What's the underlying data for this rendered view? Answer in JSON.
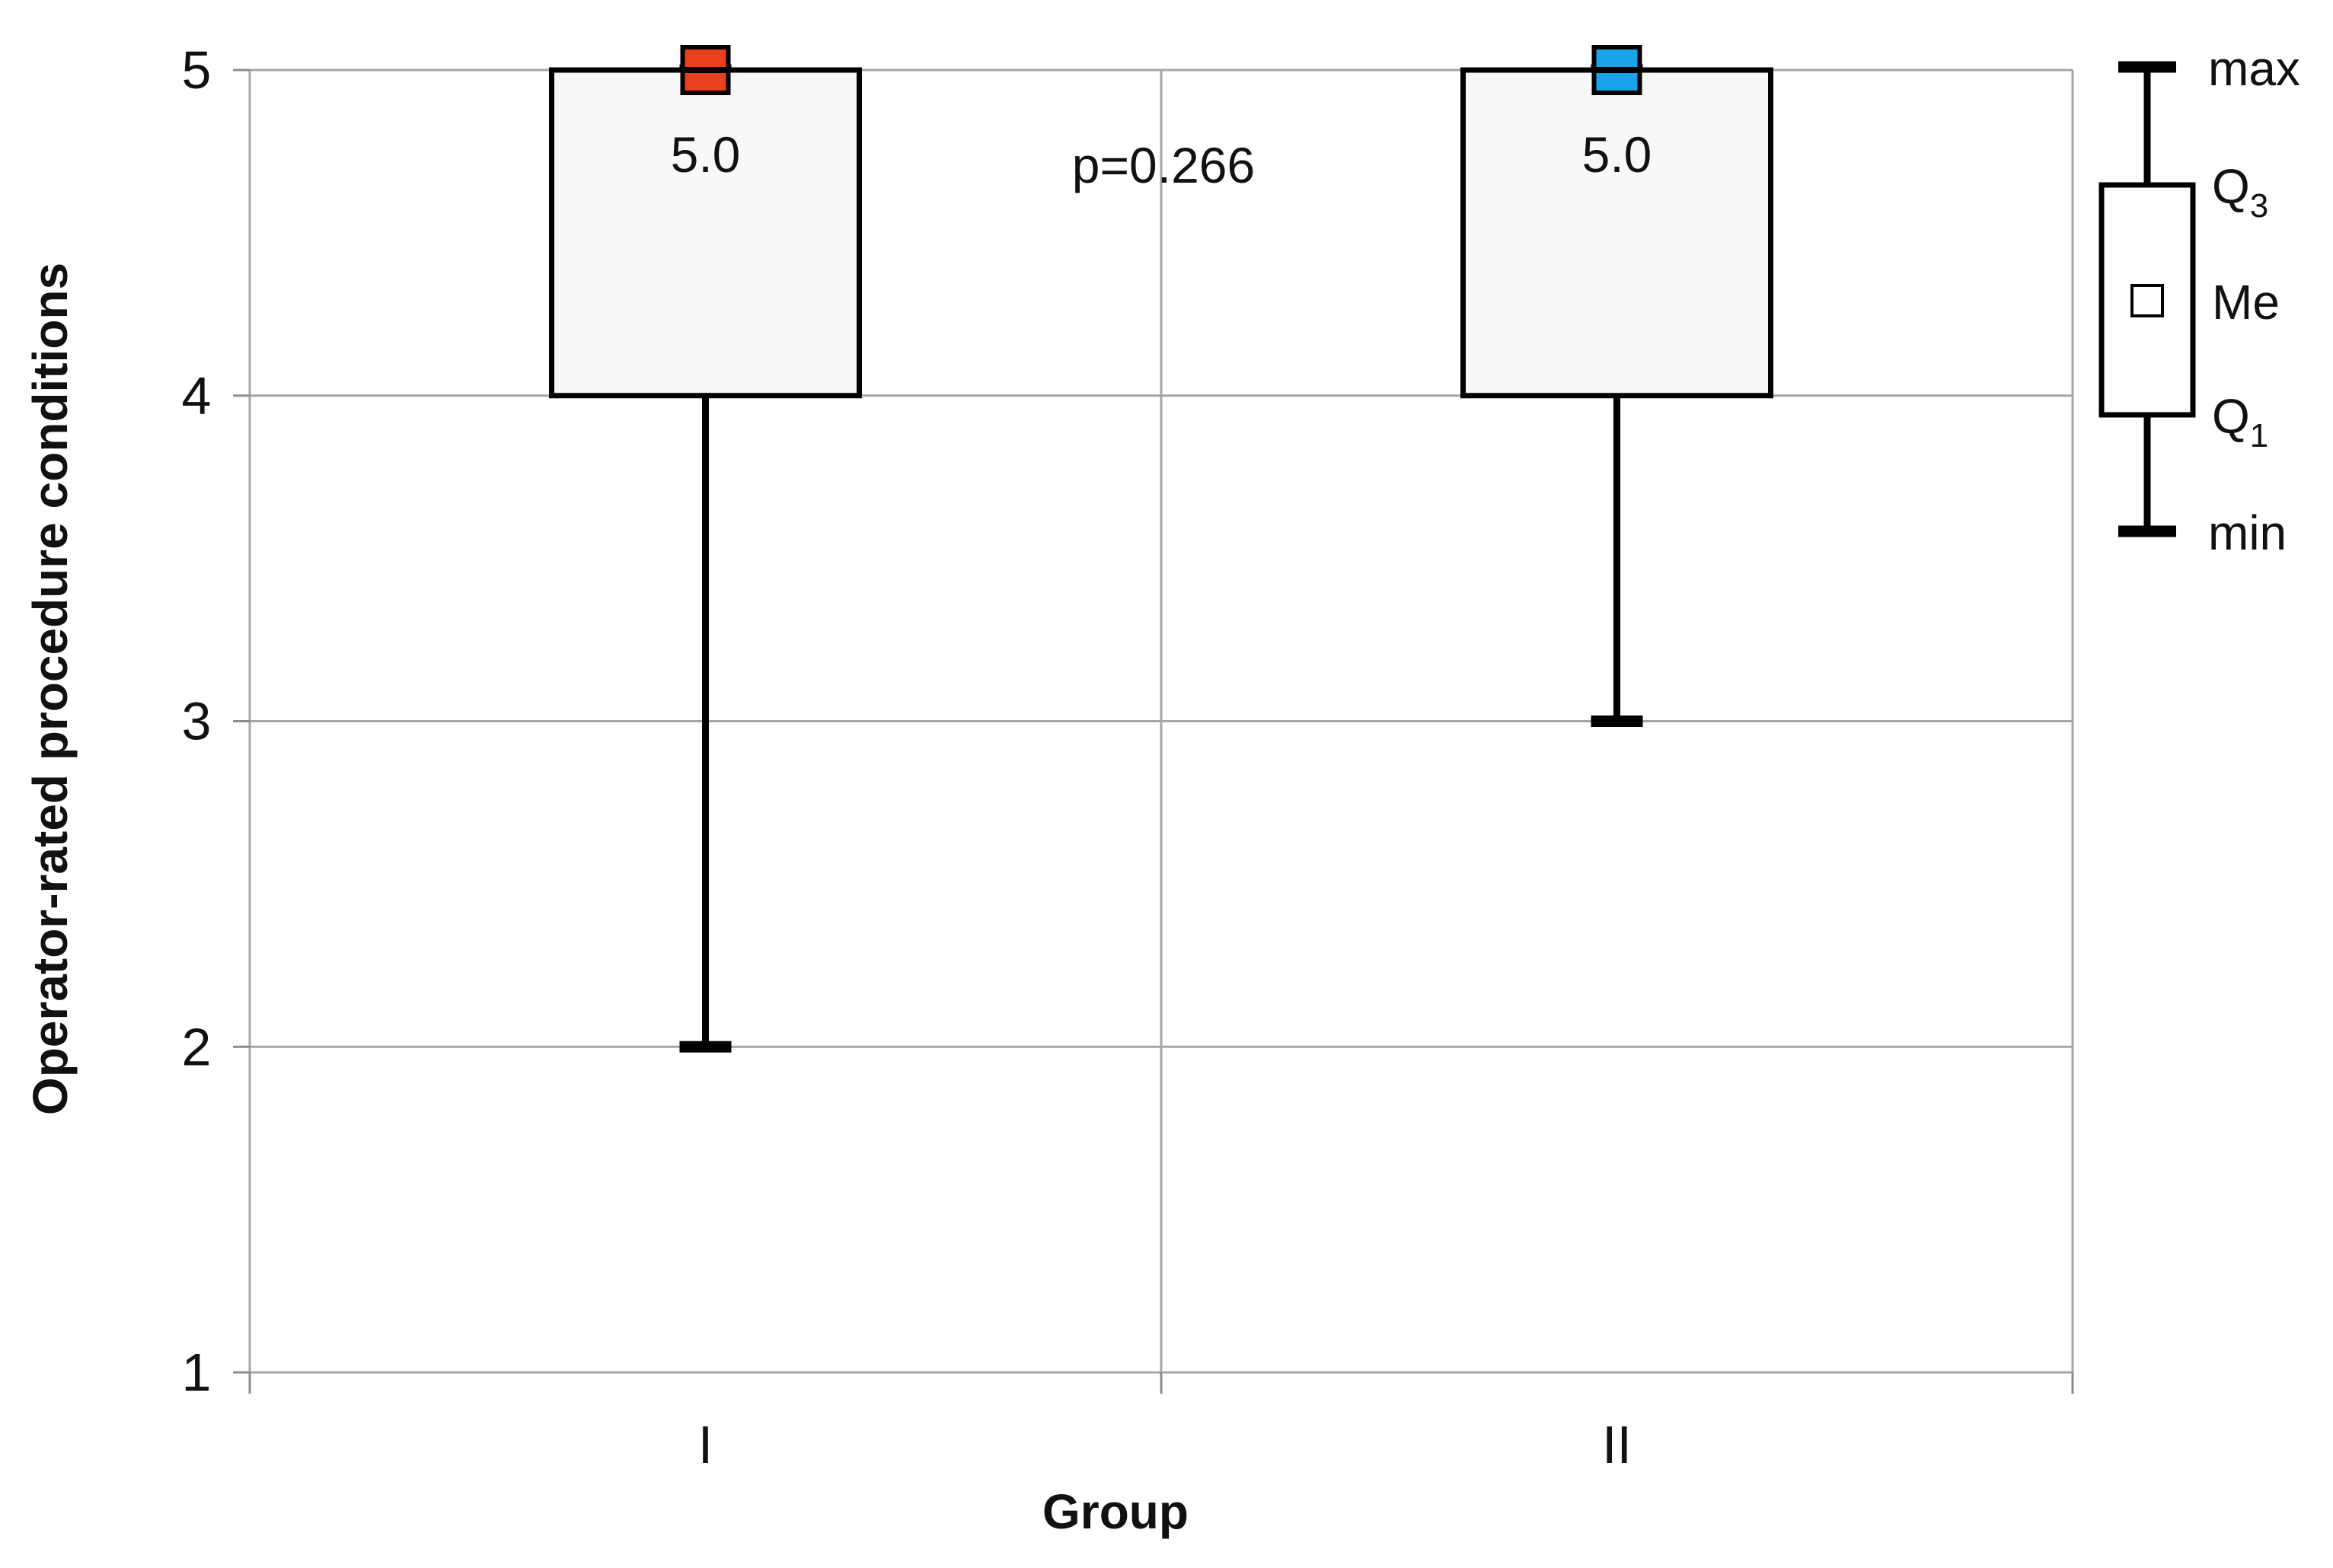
{
  "chart_data": {
    "type": "box",
    "xlabel": "Group",
    "ylabel": "Operator-rated procedure conditions",
    "ylim": [
      1,
      5
    ],
    "yticks": [
      1,
      2,
      3,
      4,
      5
    ],
    "grid": true,
    "categories": [
      "I",
      "II"
    ],
    "groups": [
      {
        "category": "I",
        "min": 2,
        "q1": 4,
        "median": 5,
        "q3": 5,
        "max": 5,
        "median_label": "5.0",
        "color": "#e8401c"
      },
      {
        "category": "II",
        "min": 3,
        "q1": 4,
        "median": 5,
        "q3": 5,
        "max": 5,
        "median_label": "5.0",
        "color": "#1aa3e8"
      }
    ],
    "annotation": "p=0.266",
    "legend": {
      "placement": "right",
      "items": [
        {
          "key": "max",
          "label": "max"
        },
        {
          "key": "q3",
          "label": "Q",
          "sub": "3"
        },
        {
          "key": "me",
          "label": "Me"
        },
        {
          "key": "q1",
          "label": "Q",
          "sub": "1"
        },
        {
          "key": "min",
          "label": "min"
        }
      ]
    }
  }
}
